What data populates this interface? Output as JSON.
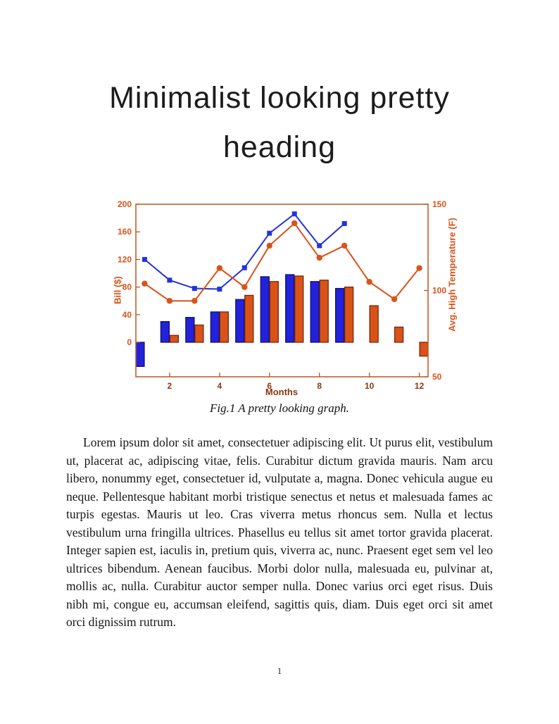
{
  "heading": {
    "text": "Minimalist looking pretty heading"
  },
  "figure": {
    "caption": "Fig.1 A pretty looking graph."
  },
  "body": {
    "paragraph": "Lorem ipsum dolor sit amet, consectetuer adipiscing elit. Ut purus elit, vestibulum ut, placerat ac, adipiscing vitae, felis. Curabitur dictum gravida mauris. Nam arcu libero, nonummy eget, consectetuer id, vulputate a, magna. Donec vehicula augue eu neque. Pellentesque habitant morbi tristique senectus et netus et malesuada fames ac turpis egestas. Mauris ut leo. Cras viverra metus rhoncus sem. Nulla et lectus vestibulum urna fringilla ultrices. Phasellus eu tellus sit amet tortor gravida placerat. Integer sapien est, iaculis in, pretium quis, viverra ac, nunc. Praesent eget sem vel leo ultrices bibendum. Aenean faucibus. Morbi dolor nulla, malesuada eu, pulvinar at, mollis ac, nulla. Curabitur auctor semper nulla. Donec varius orci eget risus. Duis nibh mi, congue eu, accumsan eleifend, sagittis quis, diam. Duis eget orci sit amet orci dignissim rutrum."
  },
  "page": {
    "number": "1"
  },
  "chart_data": {
    "type": "combo",
    "x": [
      1,
      2,
      3,
      4,
      5,
      6,
      7,
      8,
      9,
      10,
      11,
      12
    ],
    "xlabel": "Months",
    "xticks": [
      2,
      4,
      6,
      8,
      10,
      12
    ],
    "xlim": [
      0.65,
      12.35
    ],
    "grid": false,
    "legend": "none",
    "frame_color": "#c1531d",
    "x_label_color": "#8b3510",
    "left_axis": {
      "label": "Bill ($)",
      "ticks": [
        0,
        40,
        80,
        120,
        160,
        200
      ],
      "lim": [
        -50,
        200
      ],
      "color": "#d95319"
    },
    "right_axis": {
      "label": "Avg. High Temperature (F)",
      "ticks": [
        50,
        100,
        150
      ],
      "lim": [
        50,
        150
      ],
      "color": "#d95319"
    },
    "series": [
      {
        "name": "bill-blue-bars",
        "type": "bar",
        "axis": "left",
        "color": "#2222dd",
        "edge": "#10106a",
        "values": [
          -35,
          30,
          36,
          44,
          62,
          95,
          98,
          88,
          78,
          null,
          null,
          null
        ]
      },
      {
        "name": "bill-orange-bars",
        "type": "bar",
        "axis": "left",
        "color": "#d95319",
        "edge": "#7a2504",
        "values": [
          null,
          10,
          25,
          44,
          68,
          88,
          96,
          90,
          80,
          53,
          22,
          -20
        ]
      },
      {
        "name": "bill-blue-line",
        "type": "line",
        "axis": "left",
        "marker": "square",
        "color": "#2233dd",
        "values": [
          120,
          90,
          78,
          77,
          108,
          158,
          186,
          140,
          172,
          null,
          null,
          null
        ]
      },
      {
        "name": "temp-orange-line",
        "type": "line",
        "axis": "right",
        "marker": "circle",
        "color": "#d95319",
        "values": [
          104,
          94,
          94,
          113,
          102,
          126,
          139,
          119,
          126,
          105,
          95,
          113
        ]
      }
    ]
  }
}
